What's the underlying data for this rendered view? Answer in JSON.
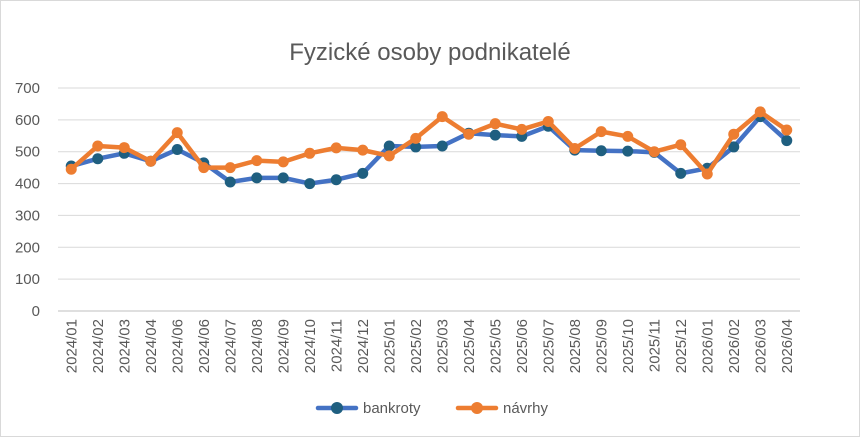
{
  "chart_data": {
    "type": "line",
    "title": "Fyzické osoby podnikatelé",
    "xlabel": "",
    "ylabel": "",
    "ylim": [
      0,
      700
    ],
    "yticks": [
      0,
      100,
      200,
      300,
      400,
      500,
      600,
      700
    ],
    "grid": true,
    "legend": "bottom",
    "categories": [
      "2024/01",
      "2024/02",
      "2024/03",
      "2024/04",
      "2024/06",
      "2024/06",
      "2024/07",
      "2024/08",
      "2024/09",
      "2024/10",
      "2024/11",
      "2024/12",
      "2025/01",
      "2025/02",
      "2025/03",
      "2025/04",
      "2025/05",
      "2025/06",
      "2025/07",
      "2025/08",
      "2025/09",
      "2025/10",
      "2025/11",
      "2025/12",
      "2026/01",
      "2026/02",
      "2026/03",
      "2026/04"
    ],
    "series": [
      {
        "name": "bankroty",
        "color": "#4472c4",
        "marker_color": "#1f5f80",
        "values": [
          455,
          478,
          495,
          470,
          507,
          465,
          405,
          418,
          418,
          400,
          412,
          432,
          518,
          515,
          518,
          558,
          552,
          548,
          580,
          505,
          503,
          502,
          498,
          432,
          448,
          515,
          610,
          535
        ]
      },
      {
        "name": "návrhy",
        "color": "#ed7d31",
        "marker_color": "#ed7d31",
        "values": [
          445,
          518,
          513,
          470,
          560,
          450,
          450,
          472,
          468,
          495,
          512,
          505,
          487,
          542,
          610,
          555,
          588,
          570,
          595,
          510,
          563,
          548,
          500,
          522,
          430,
          555,
          625,
          568
        ]
      }
    ]
  }
}
